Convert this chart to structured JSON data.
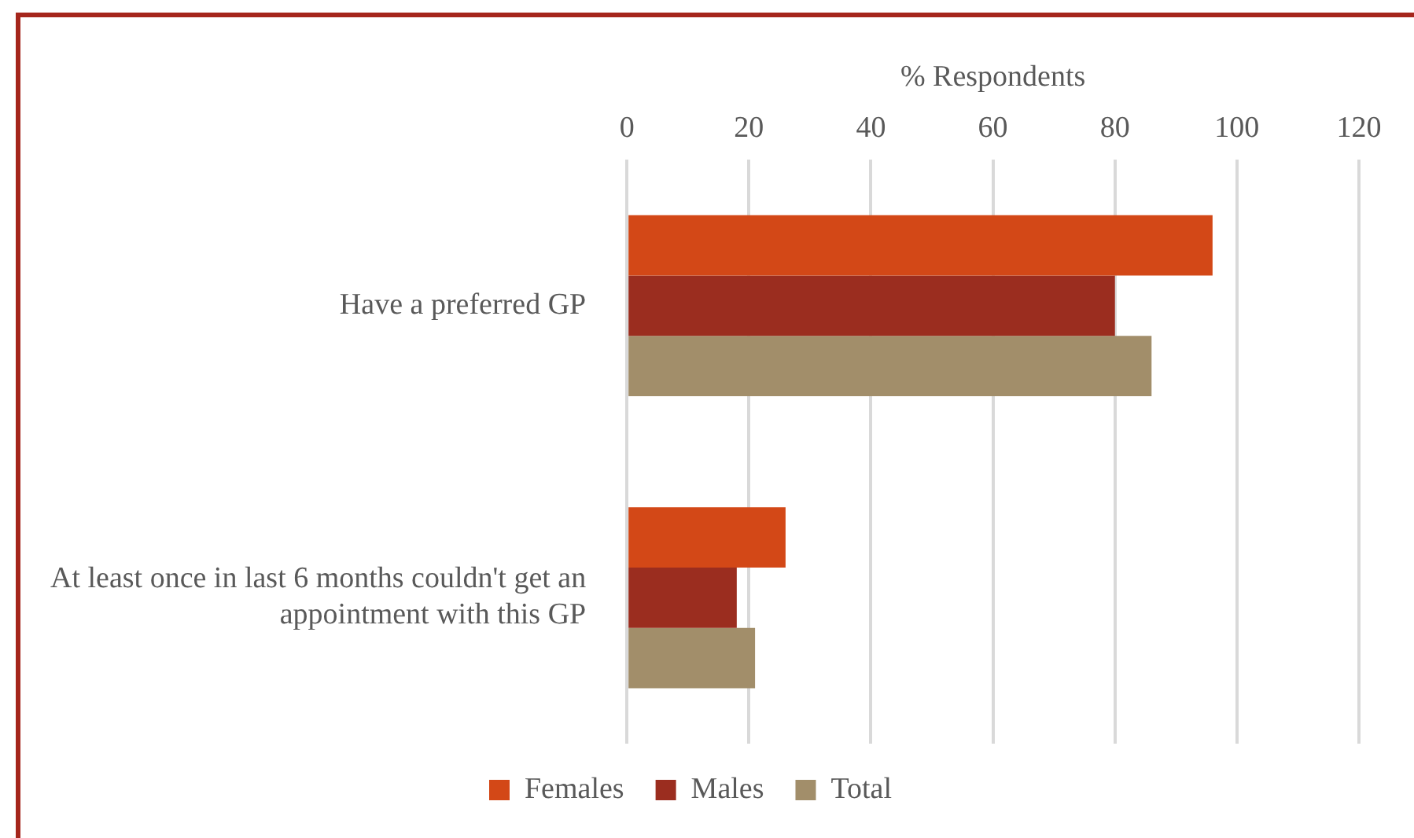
{
  "chart_data": {
    "type": "bar",
    "orientation": "horizontal",
    "xlabel": "% Respondents",
    "categories": [
      "Have a preferred GP",
      "At least once in last 6 months couldn't get an appointment with this GP"
    ],
    "series": [
      {
        "name": "Females",
        "color": "#d34817",
        "values": [
          96,
          26
        ]
      },
      {
        "name": "Males",
        "color": "#9b2d1f",
        "values": [
          80,
          18
        ]
      },
      {
        "name": "Total",
        "color": "#a28e6a",
        "values": [
          86,
          21
        ]
      }
    ],
    "xlim": [
      0,
      120
    ],
    "xticks": [
      0,
      20,
      40,
      60,
      80,
      100,
      120
    ],
    "grid": "x",
    "legend": "bottom"
  }
}
